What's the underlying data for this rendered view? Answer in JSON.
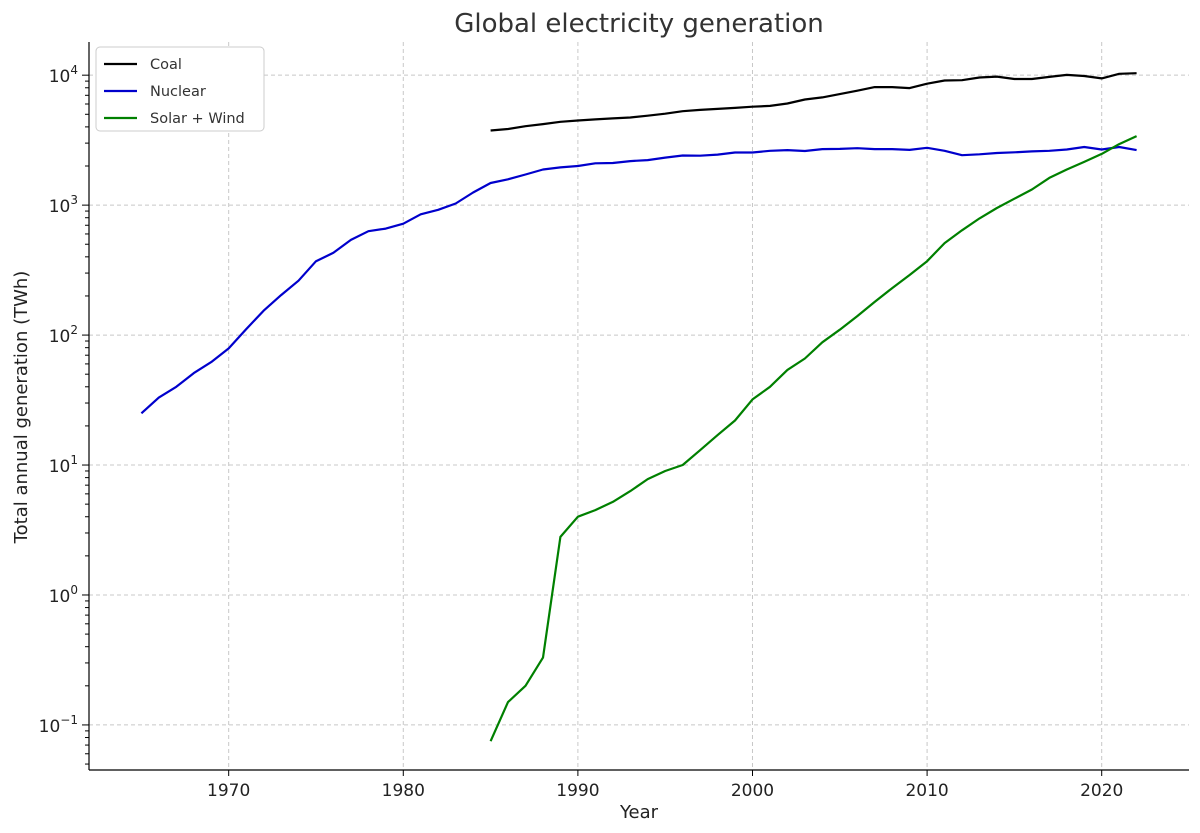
{
  "chart_data": {
    "type": "line",
    "title": "Global electricity generation",
    "xlabel": "Year",
    "ylabel": "Total annual generation (TWh)",
    "yscale": "log",
    "xlim": [
      1962,
      2025
    ],
    "ylim": [
      0.045,
      18000
    ],
    "grid": true,
    "legend_position": "top-left",
    "x_ticks": [
      1970,
      1980,
      1990,
      2000,
      2010,
      2020
    ],
    "y_ticks": [
      {
        "value": 0.1,
        "base": "10",
        "exp": "−1"
      },
      {
        "value": 1,
        "base": "10",
        "exp": "0"
      },
      {
        "value": 10,
        "base": "10",
        "exp": "1"
      },
      {
        "value": 100,
        "base": "10",
        "exp": "2"
      },
      {
        "value": 1000,
        "base": "10",
        "exp": "3"
      },
      {
        "value": 10000,
        "base": "10",
        "exp": "4"
      }
    ],
    "series": [
      {
        "name": "Coal",
        "color": "#000000",
        "x": [
          1985,
          1986,
          1987,
          1988,
          1989,
          1990,
          1991,
          1992,
          1993,
          1994,
          1995,
          1996,
          1997,
          1998,
          1999,
          2000,
          2001,
          2002,
          2003,
          2004,
          2005,
          2006,
          2007,
          2008,
          2009,
          2010,
          2011,
          2012,
          2013,
          2014,
          2015,
          2016,
          2017,
          2018,
          2019,
          2020,
          2021,
          2022
        ],
        "y": [
          3750,
          3850,
          4050,
          4200,
          4380,
          4480,
          4570,
          4650,
          4720,
          4880,
          5050,
          5280,
          5400,
          5500,
          5600,
          5720,
          5800,
          6050,
          6500,
          6750,
          7150,
          7600,
          8100,
          8100,
          7950,
          8600,
          9100,
          9150,
          9600,
          9750,
          9350,
          9350,
          9700,
          10050,
          9850,
          9450,
          10250,
          10350
        ]
      },
      {
        "name": "Nuclear",
        "color": "#0000cc",
        "x": [
          1965,
          1966,
          1967,
          1968,
          1969,
          1970,
          1971,
          1972,
          1973,
          1974,
          1975,
          1976,
          1977,
          1978,
          1979,
          1980,
          1981,
          1982,
          1983,
          1984,
          1985,
          1986,
          1987,
          1988,
          1989,
          1990,
          1991,
          1992,
          1993,
          1994,
          1995,
          1996,
          1997,
          1998,
          1999,
          2000,
          2001,
          2002,
          2003,
          2004,
          2005,
          2006,
          2007,
          2008,
          2009,
          2010,
          2011,
          2012,
          2013,
          2014,
          2015,
          2016,
          2017,
          2018,
          2019,
          2020,
          2021,
          2022
        ],
        "y": [
          25,
          33,
          40,
          51,
          62,
          79,
          111,
          154,
          203,
          262,
          370,
          430,
          540,
          630,
          660,
          720,
          850,
          920,
          1030,
          1250,
          1480,
          1580,
          1720,
          1880,
          1950,
          2000,
          2100,
          2110,
          2180,
          2220,
          2320,
          2410,
          2400,
          2450,
          2540,
          2540,
          2620,
          2650,
          2610,
          2700,
          2710,
          2740,
          2700,
          2700,
          2660,
          2760,
          2620,
          2420,
          2460,
          2520,
          2550,
          2590,
          2620,
          2680,
          2800,
          2680,
          2800,
          2650
        ]
      },
      {
        "name": "Solar + Wind",
        "color": "#008000",
        "x": [
          1985,
          1986,
          1987,
          1988,
          1989,
          1990,
          1991,
          1992,
          1993,
          1994,
          1995,
          1996,
          1997,
          1998,
          1999,
          2000,
          2001,
          2002,
          2003,
          2004,
          2005,
          2006,
          2007,
          2008,
          2009,
          2010,
          2011,
          2012,
          2013,
          2014,
          2015,
          2016,
          2017,
          2018,
          2019,
          2020,
          2021,
          2022
        ],
        "y": [
          0.075,
          0.15,
          0.2,
          0.33,
          2.8,
          4.0,
          4.5,
          5.2,
          6.3,
          7.8,
          9.0,
          10,
          13,
          17,
          22,
          32,
          40,
          54,
          66,
          88,
          110,
          140,
          180,
          230,
          290,
          370,
          510,
          640,
          790,
          950,
          1120,
          1320,
          1620,
          1880,
          2150,
          2480,
          2950,
          3400
        ]
      }
    ]
  }
}
